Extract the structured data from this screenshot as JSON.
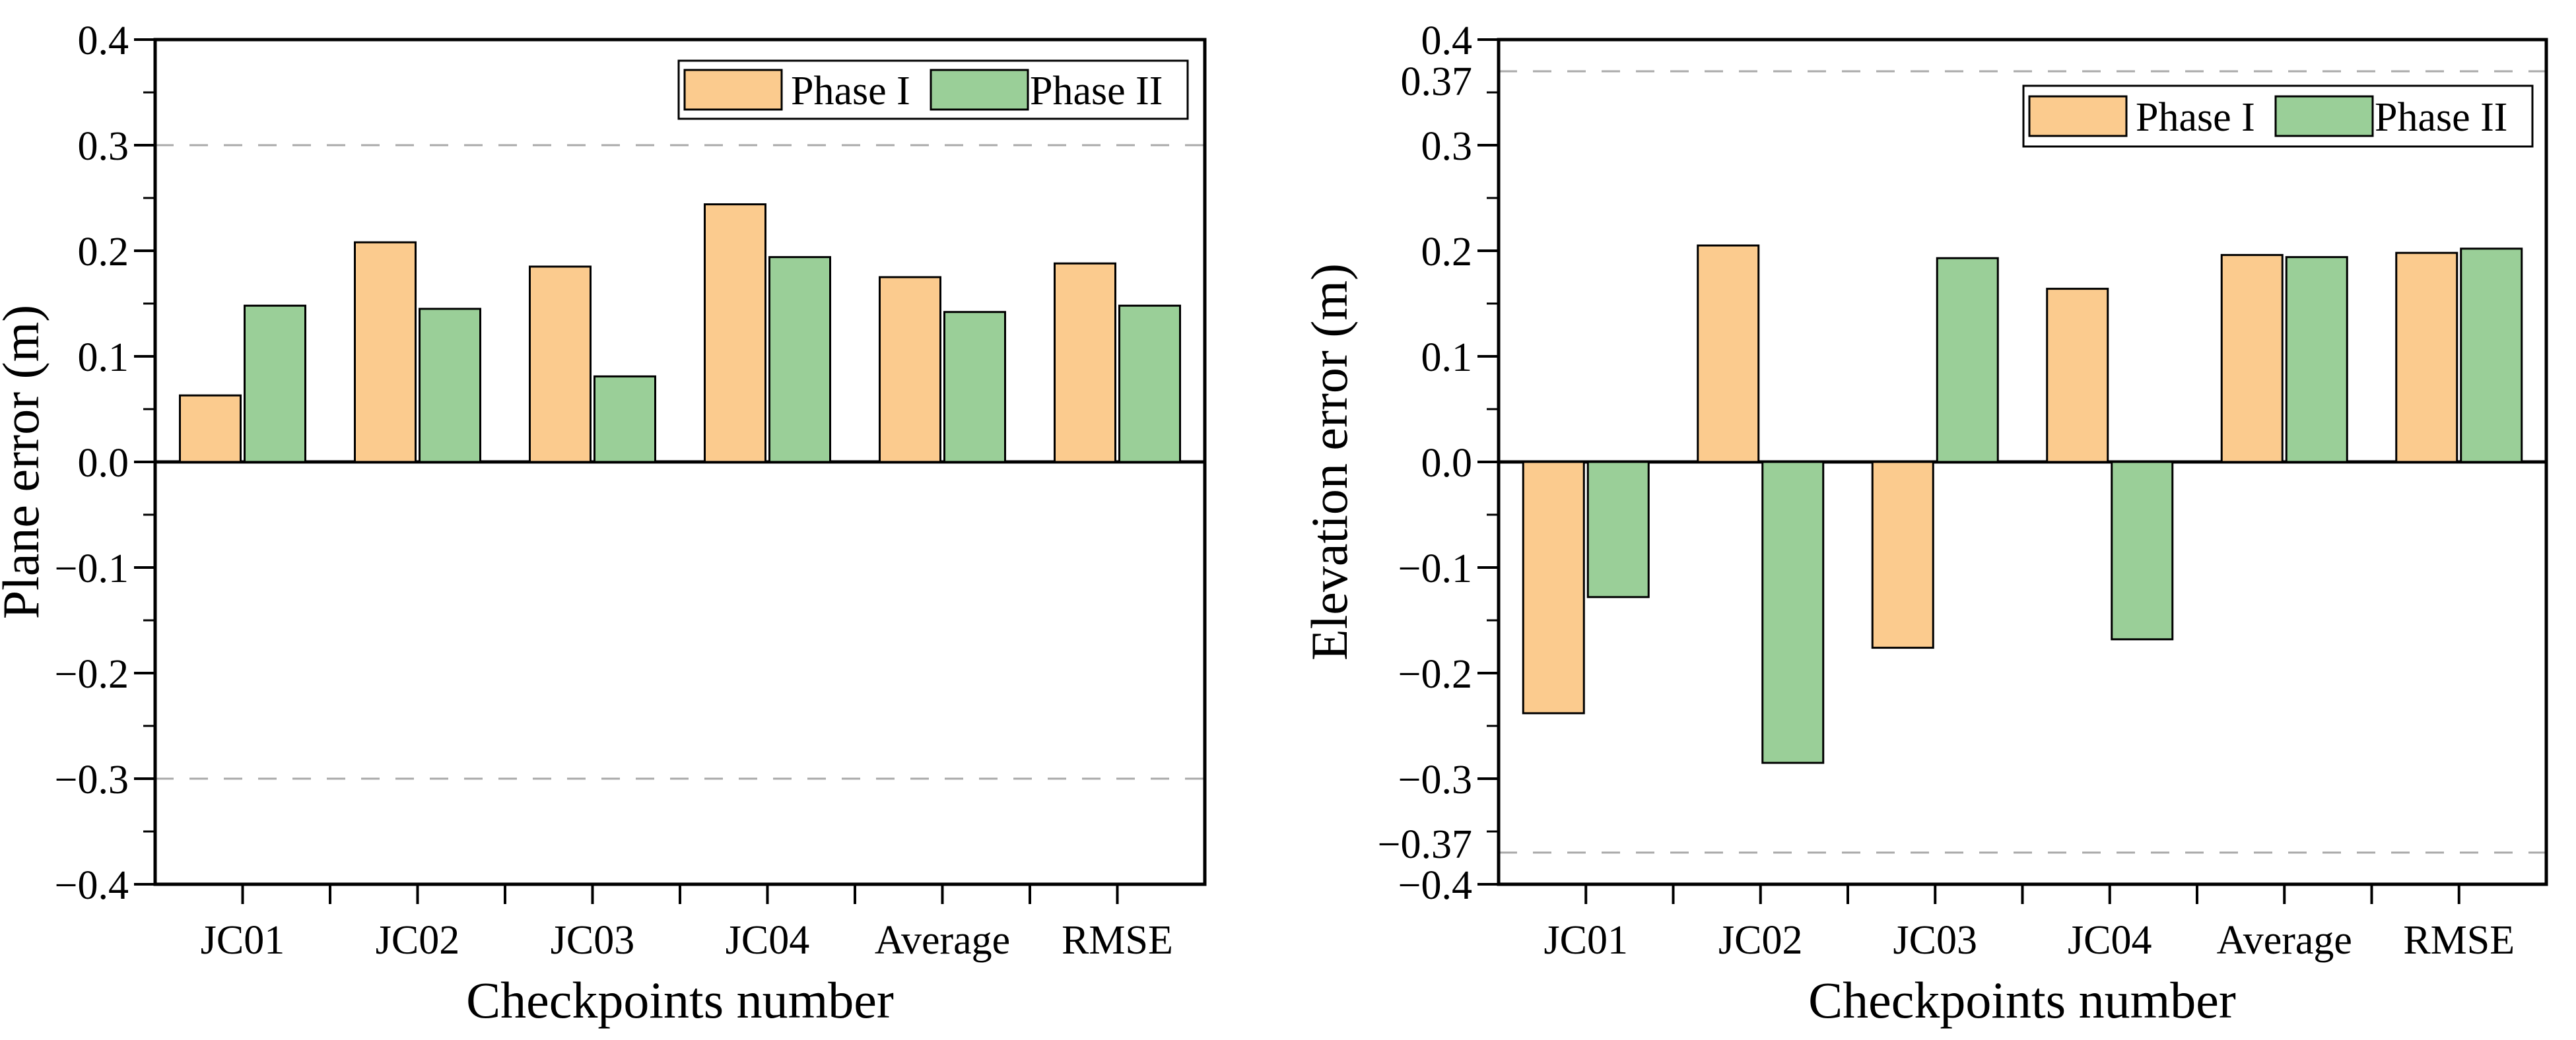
{
  "figure": {
    "background": "#ffffff",
    "bar_stroke_color": "#000000",
    "reference_line_color": "#a9a9a9",
    "axis_color": "#000000"
  },
  "chart_data": [
    {
      "type": "bar",
      "title": "",
      "xlabel": "Checkpoints number",
      "ylabel": "Plane error (m)",
      "categories": [
        "JC01",
        "JC02",
        "JC03",
        "JC04",
        "Average",
        "RMSE"
      ],
      "series": [
        {
          "name": "Phase I",
          "color": "#FBCB8E",
          "values": [
            0.063,
            0.208,
            0.185,
            0.244,
            0.175,
            0.188
          ]
        },
        {
          "name": "Phase II",
          "color": "#9ACF98",
          "values": [
            0.148,
            0.145,
            0.081,
            0.194,
            0.142,
            0.148
          ]
        }
      ],
      "ylim": [
        -0.4,
        0.4
      ],
      "ymajor": 0.1,
      "yminor": 0.05,
      "ytick_labels": [
        "0.4",
        "0.3",
        "0.2",
        "0.1",
        "0.0",
        "−0.1",
        "−0.2",
        "−0.3",
        "−0.4"
      ],
      "reference_lines": [
        {
          "value": 0.3,
          "label": null
        },
        {
          "value": -0.3,
          "label": null
        }
      ],
      "legend_position": "top-right",
      "grid": false
    },
    {
      "type": "bar",
      "title": "",
      "xlabel": "Checkpoints number",
      "ylabel": "Elevation error (m)",
      "categories": [
        "JC01",
        "JC02",
        "JC03",
        "JC04",
        "Average",
        "RMSE"
      ],
      "series": [
        {
          "name": "Phase I",
          "color": "#FBCB8E",
          "values": [
            -0.238,
            0.205,
            -0.176,
            0.164,
            0.196,
            0.198
          ]
        },
        {
          "name": "Phase II",
          "color": "#9ACF98",
          "values": [
            -0.128,
            -0.285,
            0.193,
            -0.168,
            0.194,
            0.202
          ]
        }
      ],
      "ylim": [
        -0.4,
        0.4
      ],
      "ymajor": 0.1,
      "yminor": 0.05,
      "ytick_labels": [
        "0.4",
        "0.3",
        "0.2",
        "0.1",
        "0.0",
        "−0.1",
        "−0.2",
        "−0.3",
        "−0.4"
      ],
      "reference_lines": [
        {
          "value": 0.37,
          "label": "0.37"
        },
        {
          "value": -0.37,
          "label": "−0.37"
        }
      ],
      "legend_position": "top-right",
      "grid": false
    }
  ]
}
